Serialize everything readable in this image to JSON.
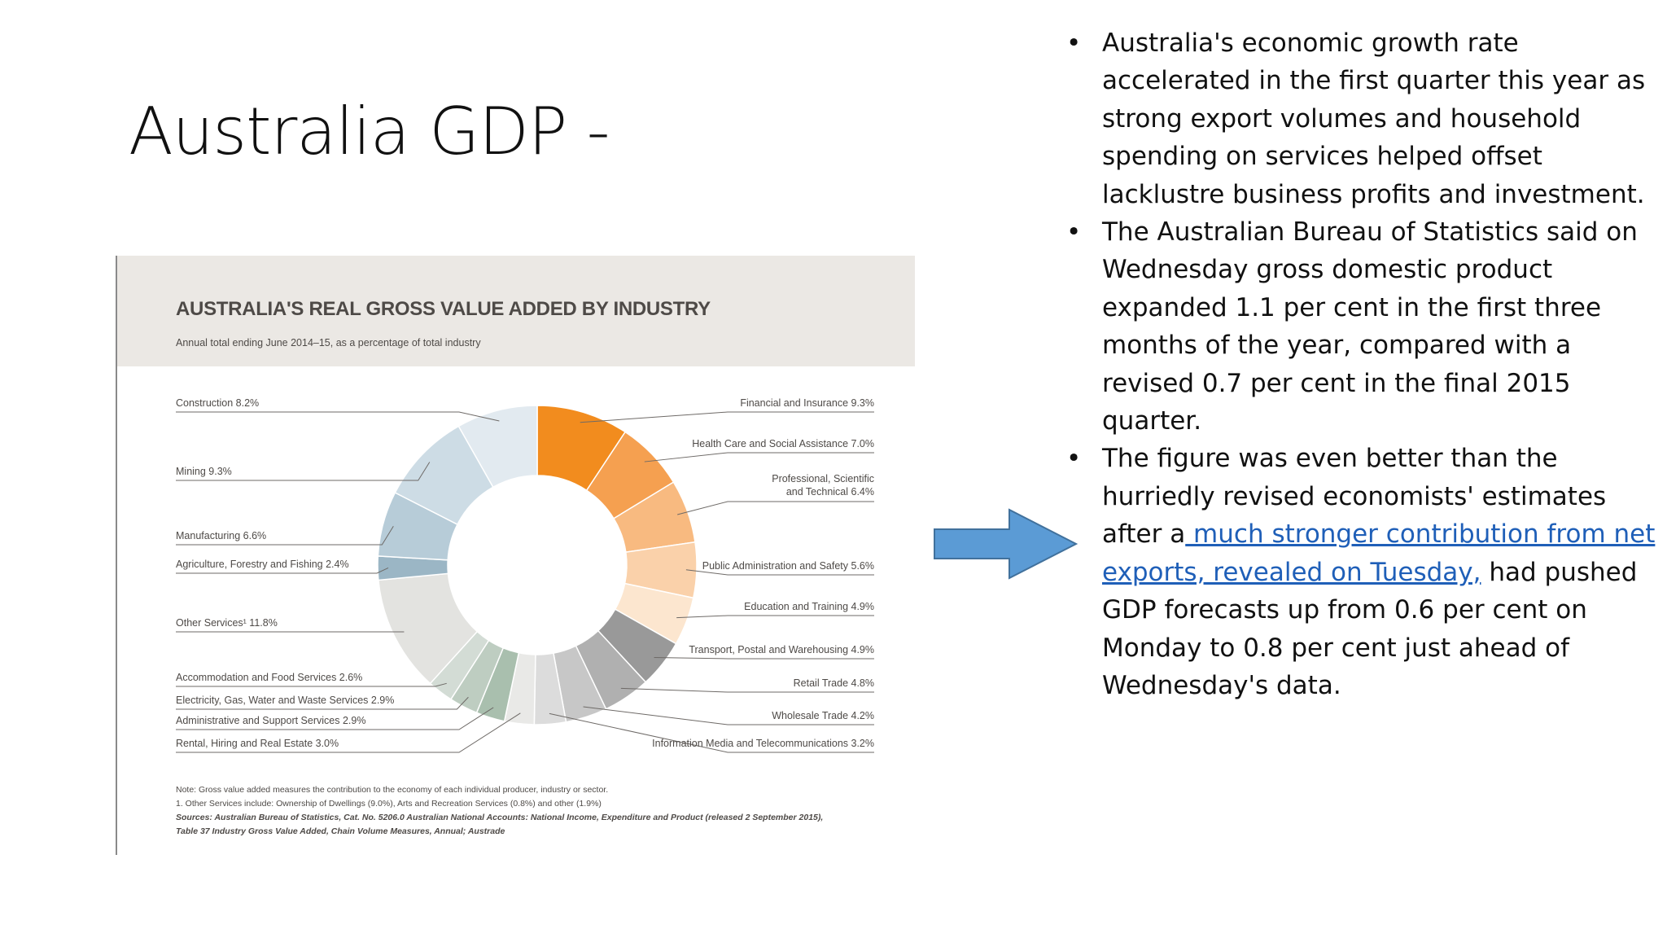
{
  "slide": {
    "title": "Australia GDP -"
  },
  "figure": {
    "title": "AUSTRALIA'S REAL GROSS VALUE ADDED BY INDUSTRY",
    "subtitle": "Annual total ending June 2014–15, as a percentage of total industry",
    "notes": {
      "note": "Note: Gross value added measures the contribution to the economy of each individual producer, industry or sector.",
      "footnote": "1. Other Services include: Ownership of Dwellings (9.0%), Arts and Recreation Services (0.8%) and other (1.9%)",
      "sources_1": "Sources: Australian Bureau of Statistics, Cat. No. 5206.0 Australian National Accounts: National Income, Expenditure and Product (released 2 September 2015),",
      "sources_2": "Table 37 Industry Gross Value Added, Chain Volume Measures, Annual; Austrade"
    }
  },
  "chart_data": {
    "type": "pie",
    "title": "AUSTRALIA'S REAL GROSS VALUE ADDED BY INDUSTRY",
    "subtitle": "Annual total ending June 2014–15, as a percentage of total industry",
    "slices": [
      {
        "label": "Financial and Insurance 9.3%",
        "value": 9.3,
        "color": "#f28c1e"
      },
      {
        "label": "Health Care and Social Assistance 7.0%",
        "value": 7.0,
        "color": "#f5a050"
      },
      {
        "label": "Professional, Scientific",
        "label2": "and Technical 6.4%",
        "value": 6.4,
        "color": "#f8ba80"
      },
      {
        "label": "Public Administration and Safety 5.6%",
        "value": 5.6,
        "color": "#fad1aa"
      },
      {
        "label": "Education and Training 4.9%",
        "value": 4.9,
        "color": "#fce6cf"
      },
      {
        "label": "Transport, Postal and Warehousing 4.9%",
        "value": 4.9,
        "color": "#999999"
      },
      {
        "label": "Retail Trade  4.8%",
        "value": 4.8,
        "color": "#b0b0b0"
      },
      {
        "label": "Wholesale Trade 4.2%",
        "value": 4.2,
        "color": "#c7c7c7"
      },
      {
        "label": "Information Media and Telecommunications 3.2%",
        "value": 3.2,
        "color": "#dcdcdc"
      },
      {
        "label": "Rental, Hiring and Real Estate 3.0%",
        "value": 3.0,
        "color": "#e9e9e7"
      },
      {
        "label": "Administrative and Support Services 2.9%",
        "value": 2.9,
        "color": "#a9bfae"
      },
      {
        "label": "Electricity, Gas, Water and Waste Services 2.9%",
        "value": 2.9,
        "color": "#becdc1"
      },
      {
        "label": "Accommodation and Food Services 2.6%",
        "value": 2.6,
        "color": "#d3dcd5"
      },
      {
        "label": "Other Services¹  11.8%",
        "value": 11.8,
        "color": "#e3e3e0"
      },
      {
        "label": "Agriculture, Forestry and Fishing 2.4%",
        "value": 2.4,
        "color": "#9bb6c5"
      },
      {
        "label": "Manufacturing 6.6%",
        "value": 6.6,
        "color": "#b7ccd8"
      },
      {
        "label": "Mining 9.3%",
        "value": 9.3,
        "color": "#cddce5"
      },
      {
        "label": "Construction 8.2%",
        "value": 8.2,
        "color": "#e2eaf0"
      }
    ]
  },
  "arrow": {
    "color": "#5b9bd5",
    "stroke": "#41719c"
  },
  "bullets": [
    {
      "text": "Australia's economic growth rate accelerated in the first quarter this year as strong export volumes and household spending on services helped offset lacklustre business profits and investment."
    },
    {
      "text": "The Australian Bureau of Statistics said on Wednesday gross domestic product expanded 1.1 per cent in the first three months of the year, compared with a revised 0.7 per cent in the final 2015 quarter."
    },
    {
      "text_before": "The figure was even better than the hurriedly revised economists' estimates after a",
      "link": " much stronger contribution from net exports, revealed on Tuesday,",
      "text_after": " had pushed GDP forecasts up from 0.6 per cent on Monday to 0.8 per cent just ahead of Wednesday's data."
    }
  ]
}
